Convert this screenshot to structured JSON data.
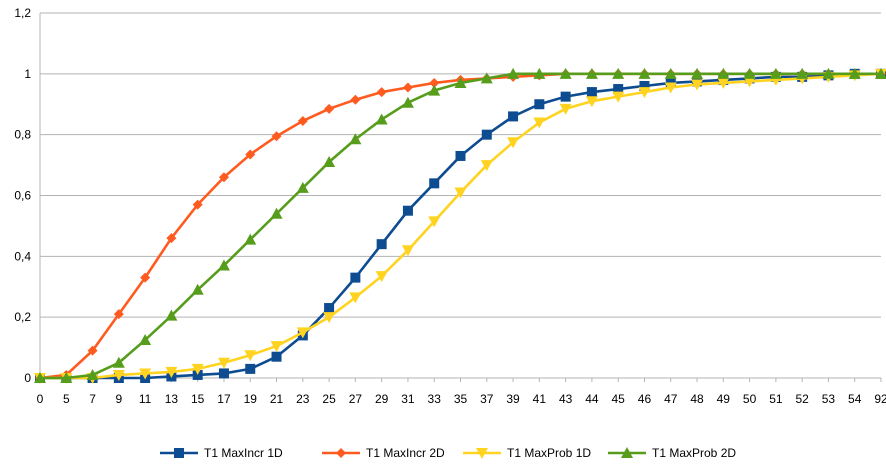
{
  "chart_data": {
    "type": "line",
    "title": "",
    "xlabel": "",
    "ylabel": "",
    "categories": [
      "0",
      "5",
      "7",
      "9",
      "11",
      "13",
      "15",
      "17",
      "19",
      "21",
      "23",
      "25",
      "27",
      "29",
      "31",
      "33",
      "35",
      "37",
      "39",
      "41",
      "43",
      "44",
      "45",
      "46",
      "47",
      "48",
      "49",
      "50",
      "51",
      "52",
      "53",
      "54",
      "92"
    ],
    "ylim": [
      0,
      1.2
    ],
    "yticks": [
      "0",
      "0,2",
      "0,4",
      "0,6",
      "0,8",
      "1",
      "1,2"
    ],
    "grid": "horizontal",
    "legend_position": "bottom",
    "series": [
      {
        "name": "T1 MaxIncr 1D",
        "color": "#0e4c92",
        "marker": "square",
        "values": [
          0,
          0,
          0,
          0,
          0,
          0.005,
          0.01,
          0.015,
          0.03,
          0.07,
          0.14,
          0.23,
          0.33,
          0.44,
          0.55,
          0.64,
          0.73,
          0.8,
          0.86,
          0.9,
          0.925,
          0.94,
          0.95,
          0.96,
          0.97,
          0.975,
          0.98,
          0.985,
          0.99,
          0.99,
          0.995,
          1,
          1
        ]
      },
      {
        "name": "T1 MaxIncr 2D",
        "color": "#ff5a1f",
        "marker": "diamond",
        "values": [
          0,
          0.01,
          0.09,
          0.21,
          0.33,
          0.46,
          0.57,
          0.66,
          0.735,
          0.795,
          0.845,
          0.885,
          0.915,
          0.94,
          0.955,
          0.97,
          0.98,
          0.985,
          0.99,
          0.995,
          1,
          1,
          1,
          1,
          1,
          1,
          1,
          1,
          1,
          1,
          1,
          1,
          1
        ]
      },
      {
        "name": "T1 MaxProb 1D",
        "color": "#ffd320",
        "marker": "triangle-down",
        "values": [
          0,
          0,
          0,
          0.01,
          0.015,
          0.02,
          0.03,
          0.05,
          0.075,
          0.105,
          0.15,
          0.2,
          0.265,
          0.335,
          0.42,
          0.515,
          0.61,
          0.7,
          0.775,
          0.84,
          0.885,
          0.91,
          0.925,
          0.94,
          0.955,
          0.965,
          0.97,
          0.975,
          0.98,
          0.985,
          0.99,
          0.995,
          1
        ]
      },
      {
        "name": "T1 MaxProb 2D",
        "color": "#579d1c",
        "marker": "triangle-up",
        "values": [
          0,
          0,
          0.01,
          0.05,
          0.125,
          0.205,
          0.29,
          0.37,
          0.455,
          0.54,
          0.625,
          0.71,
          0.785,
          0.85,
          0.905,
          0.945,
          0.97,
          0.985,
          1,
          1,
          1,
          1,
          1,
          1,
          1,
          1,
          1,
          1,
          1,
          1,
          1,
          1,
          1
        ]
      }
    ]
  }
}
